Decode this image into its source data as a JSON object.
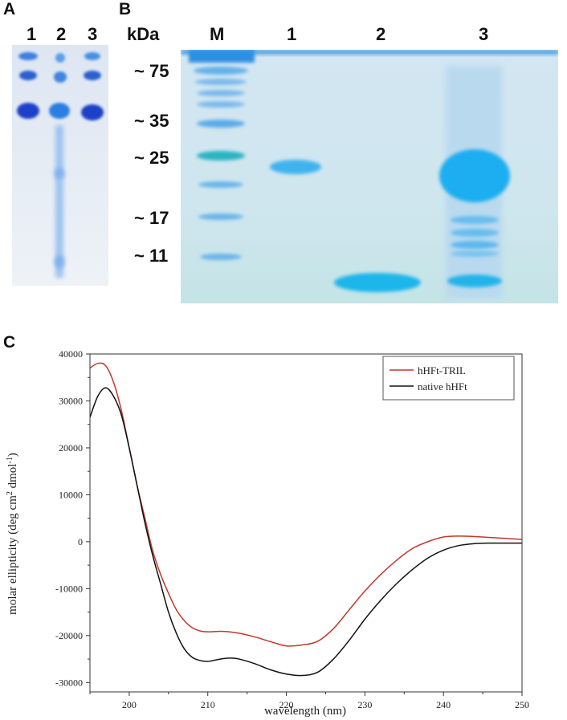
{
  "panel_a": {
    "letter": "A",
    "lanes": [
      "1",
      "2",
      "3"
    ]
  },
  "panel_b": {
    "letter": "B",
    "header": "kDa",
    "lanes": [
      "M",
      "1",
      "2",
      "3"
    ],
    "markers": [
      "~ 75",
      "~ 35",
      "~ 25",
      "~ 17",
      "~ 11"
    ]
  },
  "panel_c": {
    "letter": "C"
  },
  "chart_data": {
    "type": "line",
    "xlabel": "wavelength (nm)",
    "ylabel_parts": [
      "molar ellipticity (deg cm",
      "2",
      " dmol",
      "-1",
      ")"
    ],
    "xlim": [
      195,
      250
    ],
    "ylim": [
      -32000,
      40000
    ],
    "x_ticks": [
      200,
      210,
      220,
      230,
      240,
      250
    ],
    "y_ticks": [
      -30000,
      -20000,
      -10000,
      0,
      10000,
      20000,
      30000,
      40000
    ],
    "x_tick_labels": [
      "200",
      "210",
      "220",
      "230",
      "240",
      "250"
    ],
    "y_tick_labels": [
      "-30000",
      "-20000",
      "-10000",
      "0",
      "10000",
      "20000",
      "30000",
      "40000"
    ],
    "legend_position": "top-right",
    "series": [
      {
        "name": "hHFt-TRIL",
        "color": "#c0392b",
        "x": [
          195,
          196,
          197,
          198,
          199,
          200,
          201,
          202,
          203,
          204,
          205,
          206,
          207,
          208,
          209,
          210,
          212,
          214,
          216,
          218,
          220,
          222,
          224,
          226,
          228,
          230,
          232,
          234,
          236,
          238,
          240,
          242,
          244,
          246,
          248,
          250
        ],
        "y": [
          37000,
          38000,
          37500,
          34000,
          28000,
          20000,
          12000,
          5000,
          -2000,
          -7000,
          -11000,
          -14500,
          -16800,
          -18300,
          -19000,
          -19200,
          -19100,
          -19500,
          -20300,
          -21300,
          -22200,
          -22000,
          -21200,
          -18500,
          -14500,
          -10500,
          -7000,
          -4000,
          -1500,
          0,
          1000,
          1200,
          1100,
          900,
          700,
          500
        ]
      },
      {
        "name": "native hHFt",
        "color": "#111111",
        "x": [
          195,
          196,
          197,
          198,
          199,
          200,
          201,
          202,
          203,
          204,
          205,
          206,
          207,
          208,
          209,
          210,
          211,
          212,
          213,
          214,
          216,
          218,
          220,
          222,
          224,
          226,
          228,
          230,
          232,
          234,
          236,
          238,
          240,
          242,
          244,
          246,
          248,
          250
        ],
        "y": [
          26500,
          31000,
          32800,
          31000,
          27000,
          20000,
          12000,
          4000,
          -3000,
          -9000,
          -15000,
          -19500,
          -22800,
          -24600,
          -25300,
          -25500,
          -25200,
          -24900,
          -24800,
          -25000,
          -26000,
          -27300,
          -28200,
          -28500,
          -27800,
          -25000,
          -21000,
          -16500,
          -12500,
          -9000,
          -6000,
          -3500,
          -1800,
          -800,
          -400,
          -300,
          -300,
          -300
        ]
      }
    ]
  }
}
